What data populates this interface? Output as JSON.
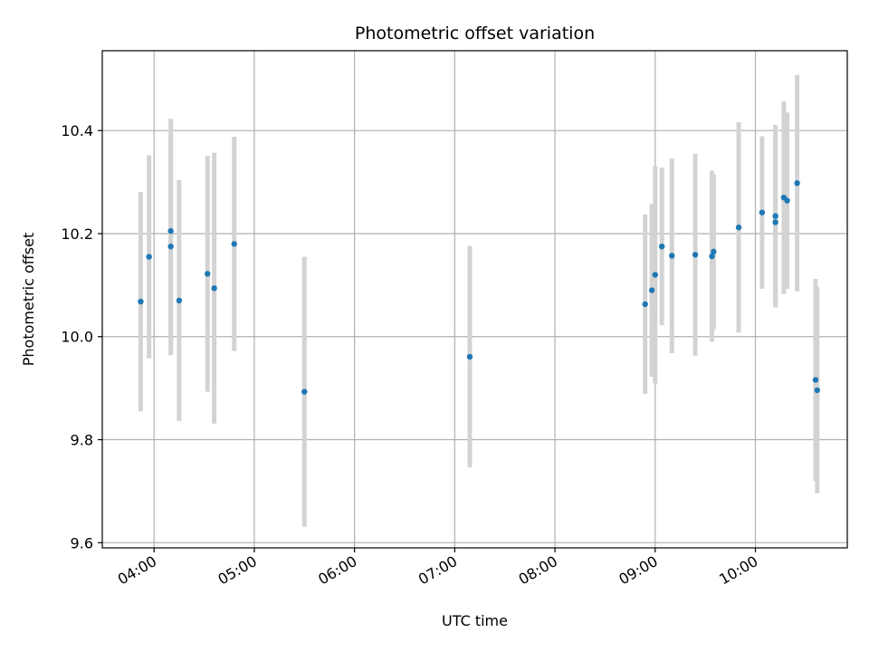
{
  "chart_data": {
    "type": "scatter",
    "title": "Photometric offset variation",
    "xlabel": "UTC time",
    "ylabel": "Photometric offset",
    "x_tick_labels": [
      "04:00",
      "05:00",
      "06:00",
      "07:00",
      "08:00",
      "09:00",
      "10:00"
    ],
    "y_tick_labels": [
      "9.6",
      "9.8",
      "10.0",
      "10.2",
      "10.4"
    ],
    "xlim": [
      "03:29",
      "10:55"
    ],
    "ylim": [
      9.59,
      10.555
    ],
    "grid": true,
    "colors": {
      "points": "#1f77b4",
      "errorbars": "#d3d3d3",
      "grid": "#b0b0b0"
    },
    "points": [
      {
        "x": "03:52",
        "y": 10.068,
        "err": 0.213
      },
      {
        "x": "03:57",
        "y": 10.155,
        "err": 0.197
      },
      {
        "x": "04:10",
        "y": 10.205,
        "err": 0.218
      },
      {
        "x": "04:10",
        "y": 10.175,
        "err": 0.211
      },
      {
        "x": "04:15",
        "y": 10.07,
        "err": 0.234
      },
      {
        "x": "04:32",
        "y": 10.122,
        "err": 0.229
      },
      {
        "x": "04:36",
        "y": 10.094,
        "err": 0.263
      },
      {
        "x": "04:48",
        "y": 10.18,
        "err": 0.208
      },
      {
        "x": "05:30",
        "y": 9.893,
        "err": 0.262
      },
      {
        "x": "07:09",
        "y": 9.961,
        "err": 0.215
      },
      {
        "x": "08:54",
        "y": 10.063,
        "err": 0.174
      },
      {
        "x": "08:58",
        "y": 10.09,
        "err": 0.168
      },
      {
        "x": "09:00",
        "y": 10.12,
        "err": 0.211
      },
      {
        "x": "09:04",
        "y": 10.175,
        "err": 0.153
      },
      {
        "x": "09:10",
        "y": 10.157,
        "err": 0.189
      },
      {
        "x": "09:24",
        "y": 10.159,
        "err": 0.196
      },
      {
        "x": "09:34",
        "y": 10.156,
        "err": 0.166
      },
      {
        "x": "09:35",
        "y": 10.165,
        "err": 0.15
      },
      {
        "x": "09:50",
        "y": 10.212,
        "err": 0.204
      },
      {
        "x": "10:04",
        "y": 10.241,
        "err": 0.148
      },
      {
        "x": "10:12",
        "y": 10.234,
        "err": 0.177
      },
      {
        "x": "10:12",
        "y": 10.222,
        "err": 0.165
      },
      {
        "x": "10:17",
        "y": 10.27,
        "err": 0.187
      },
      {
        "x": "10:19",
        "y": 10.264,
        "err": 0.171
      },
      {
        "x": "10:25",
        "y": 10.298,
        "err": 0.21
      },
      {
        "x": "10:36",
        "y": 9.916,
        "err": 0.196
      },
      {
        "x": "10:37",
        "y": 9.896,
        "err": 0.2
      }
    ]
  }
}
